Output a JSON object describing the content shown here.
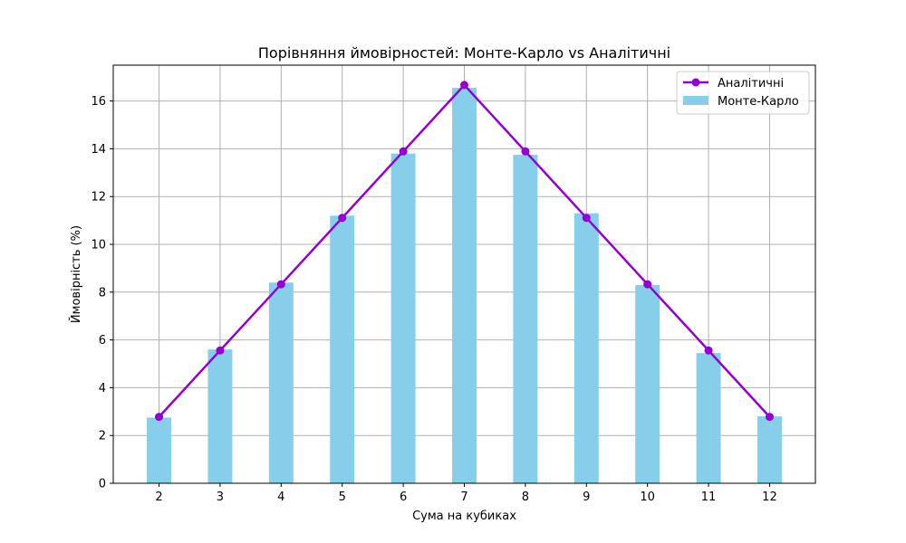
{
  "chart_data": {
    "type": "bar",
    "title": "Порівняння ймовірностей: Монте-Карло vs Аналітичні",
    "xlabel": "Сума на кубиках",
    "ylabel": "Ймовірність (%)",
    "categories": [
      2,
      3,
      4,
      5,
      6,
      7,
      8,
      9,
      10,
      11,
      12
    ],
    "ylim": [
      0,
      17.5
    ],
    "yticks": [
      0,
      2,
      4,
      6,
      8,
      10,
      12,
      14,
      16
    ],
    "grid": true,
    "legend_position": "top-right",
    "series": [
      {
        "name": "Аналітичні",
        "type": "line",
        "marker": "circle",
        "color": "#9400D3",
        "values": [
          2.78,
          5.56,
          8.33,
          11.11,
          13.89,
          16.67,
          13.89,
          11.11,
          8.33,
          5.56,
          2.78
        ]
      },
      {
        "name": "Монте-Карло",
        "type": "bar",
        "color": "#87CEEB",
        "values": [
          2.75,
          5.6,
          8.4,
          11.2,
          13.8,
          16.55,
          13.75,
          11.3,
          8.3,
          5.45,
          2.8
        ]
      }
    ]
  }
}
